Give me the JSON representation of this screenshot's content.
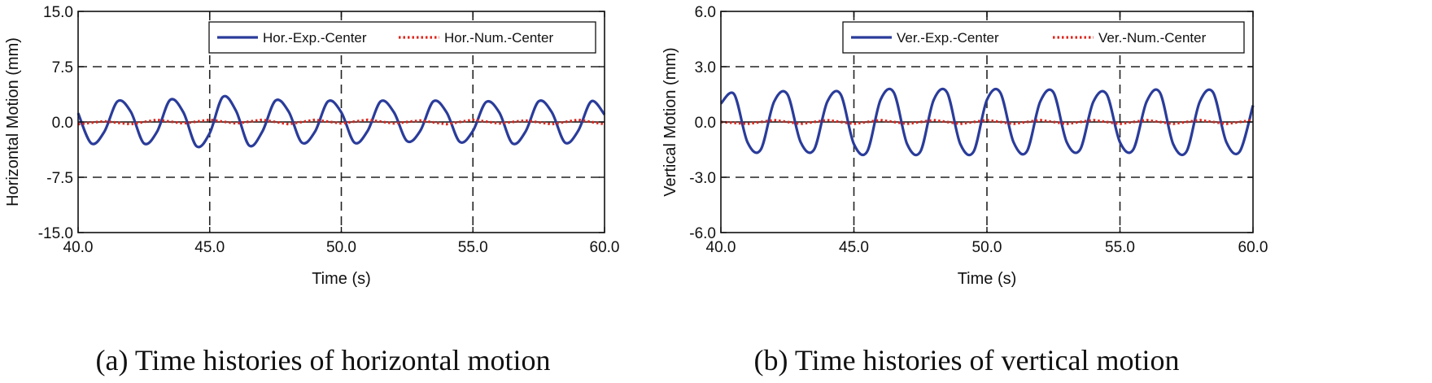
{
  "chart_data": [
    {
      "type": "line",
      "caption": "(a) Time histories of horizontal motion",
      "xlabel": "Time (s)",
      "ylabel": "Horizontal Motion (mm)",
      "xlim": [
        40.0,
        60.0
      ],
      "ylim": [
        -15.0,
        15.0
      ],
      "xticks": [
        40.0,
        45.0,
        50.0,
        55.0,
        60.0
      ],
      "xtick_labels": [
        "40.0",
        "45.0",
        "50.0",
        "55.0",
        "60.0"
      ],
      "yticks": [
        -15.0,
        -7.5,
        0.0,
        7.5,
        15.0
      ],
      "ytick_labels": [
        "-15.0",
        "-7.5",
        "0.0",
        "7.5",
        "15.0"
      ],
      "grid": "dashed",
      "legend_position": "top-right",
      "series": [
        {
          "name": "Hor.-Exp.-Center",
          "style": "solid",
          "color": "#2a3c9a",
          "x": [
            40.0,
            40.5,
            41.0,
            41.5,
            42.0,
            42.5,
            43.0,
            43.5,
            44.0,
            44.5,
            45.0,
            45.5,
            46.0,
            46.5,
            47.0,
            47.5,
            48.0,
            48.5,
            49.0,
            49.5,
            50.0,
            50.5,
            51.0,
            51.5,
            52.0,
            52.5,
            53.0,
            53.5,
            54.0,
            54.5,
            55.0,
            55.5,
            56.0,
            56.5,
            57.0,
            57.5,
            58.0,
            58.5,
            59.0,
            59.5,
            60.0
          ],
          "y": [
            1.2,
            -2.9,
            -1.3,
            2.8,
            1.4,
            -2.9,
            -1.3,
            3.0,
            1.3,
            -3.3,
            -1.5,
            3.4,
            1.5,
            -3.2,
            -1.3,
            2.9,
            1.4,
            -2.8,
            -1.3,
            2.8,
            1.3,
            -2.8,
            -1.2,
            2.8,
            1.3,
            -2.6,
            -1.2,
            2.8,
            1.3,
            -2.7,
            -1.2,
            2.7,
            1.3,
            -2.9,
            -1.3,
            2.8,
            1.3,
            -2.8,
            -1.2,
            2.8,
            1.0
          ]
        },
        {
          "name": "Hor.-Num.-Center",
          "style": "dotted",
          "color": "#e0251b",
          "x": [
            40.0,
            41.0,
            42.0,
            43.0,
            44.0,
            45.0,
            46.0,
            47.0,
            48.0,
            49.0,
            50.0,
            51.0,
            52.0,
            53.0,
            54.0,
            55.0,
            56.0,
            57.0,
            58.0,
            59.0,
            60.0
          ],
          "y": [
            -0.3,
            0.1,
            -0.3,
            0.3,
            -0.2,
            0.3,
            -0.2,
            0.3,
            -0.3,
            0.3,
            -0.2,
            0.3,
            -0.2,
            0.2,
            -0.3,
            0.3,
            -0.2,
            0.2,
            -0.3,
            0.3,
            -0.3
          ]
        }
      ]
    },
    {
      "type": "line",
      "caption": "(b) Time histories of vertical motion",
      "xlabel": "Time (s)",
      "ylabel": "Vertical Motion (mm)",
      "xlim": [
        40.0,
        60.0
      ],
      "ylim": [
        -6.0,
        6.0
      ],
      "xticks": [
        40.0,
        45.0,
        50.0,
        55.0,
        60.0
      ],
      "xtick_labels": [
        "40.0",
        "45.0",
        "50.0",
        "55.0",
        "60.0"
      ],
      "yticks": [
        -6.0,
        -3.0,
        0.0,
        3.0,
        6.0
      ],
      "ytick_labels": [
        "-6.0",
        "-3.0",
        "0.0",
        "3.0",
        "6.0"
      ],
      "grid": "dashed",
      "legend_position": "top-right",
      "series": [
        {
          "name": "Ver.-Exp.-Center",
          "style": "solid",
          "color": "#2a3c9a",
          "x": [
            40.0,
            40.5,
            41.0,
            41.5,
            42.0,
            42.5,
            43.0,
            43.5,
            44.0,
            44.5,
            45.0,
            45.5,
            46.0,
            46.5,
            47.0,
            47.5,
            48.0,
            48.5,
            49.0,
            49.5,
            50.0,
            50.5,
            51.0,
            51.5,
            52.0,
            52.5,
            53.0,
            53.5,
            54.0,
            54.5,
            55.0,
            55.5,
            56.0,
            56.5,
            57.0,
            57.5,
            58.0,
            58.5,
            59.0,
            59.5,
            60.0
          ],
          "y": [
            1.0,
            1.5,
            -1.1,
            -1.5,
            1.1,
            1.5,
            -1.1,
            -1.5,
            1.1,
            1.5,
            -1.2,
            -1.6,
            1.2,
            1.6,
            -1.2,
            -1.6,
            1.2,
            1.6,
            -1.2,
            -1.6,
            1.2,
            1.6,
            -1.1,
            -1.6,
            1.1,
            1.6,
            -1.1,
            -1.5,
            1.1,
            1.5,
            -1.1,
            -1.5,
            1.1,
            1.6,
            -1.2,
            -1.6,
            1.1,
            1.6,
            -1.1,
            -1.6,
            0.9
          ]
        },
        {
          "name": "Ver.-Num.-Center",
          "style": "dotted",
          "color": "#e0251b",
          "x": [
            40.0,
            41.0,
            42.0,
            43.0,
            44.0,
            45.0,
            46.0,
            47.0,
            48.0,
            49.0,
            50.0,
            51.0,
            52.0,
            53.0,
            54.0,
            55.0,
            56.0,
            57.0,
            58.0,
            59.0,
            60.0
          ],
          "y": [
            0.0,
            -0.1,
            0.1,
            -0.1,
            0.1,
            -0.1,
            0.1,
            -0.1,
            0.1,
            -0.1,
            0.1,
            -0.1,
            0.1,
            -0.1,
            0.1,
            -0.1,
            0.1,
            -0.1,
            0.1,
            -0.1,
            0.1
          ]
        }
      ]
    }
  ]
}
